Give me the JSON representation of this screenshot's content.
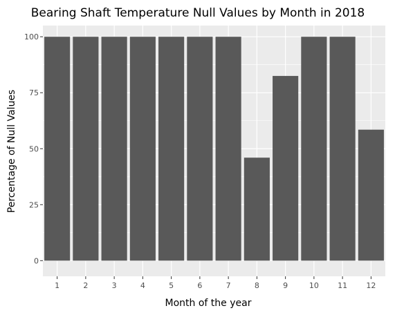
{
  "chart_data": {
    "type": "bar",
    "title": "Bearing Shaft Temperature Null Values by Month in 2018",
    "xlabel": "Month of the year",
    "ylabel": "Percentage of Null Values",
    "categories": [
      "1",
      "2",
      "3",
      "4",
      "5",
      "6",
      "7",
      "8",
      "9",
      "10",
      "11",
      "12"
    ],
    "values": [
      100,
      100,
      100,
      100,
      100,
      100,
      100,
      46,
      82.5,
      100,
      100,
      58.5
    ],
    "ylim": [
      -7,
      105
    ],
    "yticks": [
      0,
      25,
      50,
      75,
      100
    ],
    "grid": true,
    "legend": "none"
  },
  "colors": {
    "panel_background": "#ebebeb",
    "grid_major": "#ffffff",
    "bar_fill": "#595959",
    "tick_text": "#4d4d4d"
  }
}
